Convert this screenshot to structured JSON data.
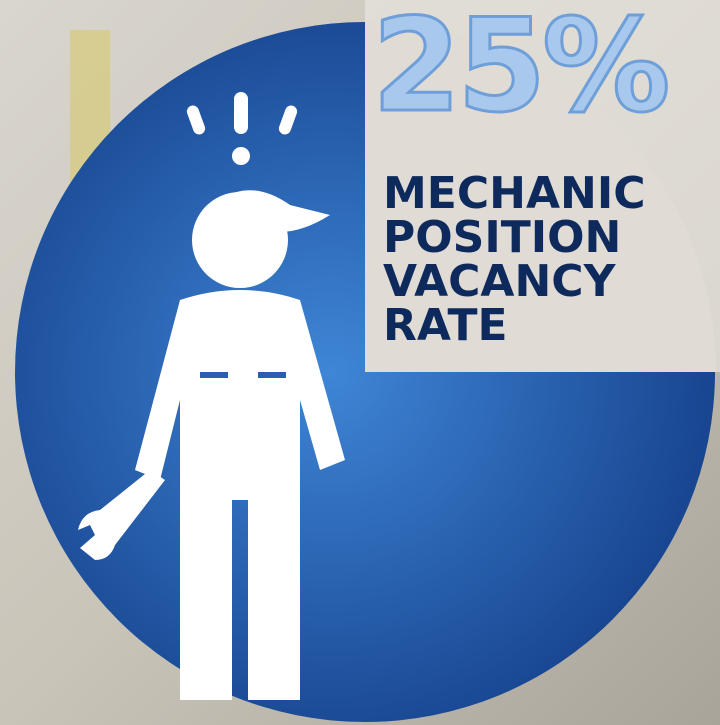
{
  "chart_data": {
    "type": "pie",
    "title": "MECHANIC POSITION VACANCY RATE",
    "values": [
      25
    ],
    "value_labels": [
      "25%"
    ],
    "color": "#1f4f9e"
  }
}
